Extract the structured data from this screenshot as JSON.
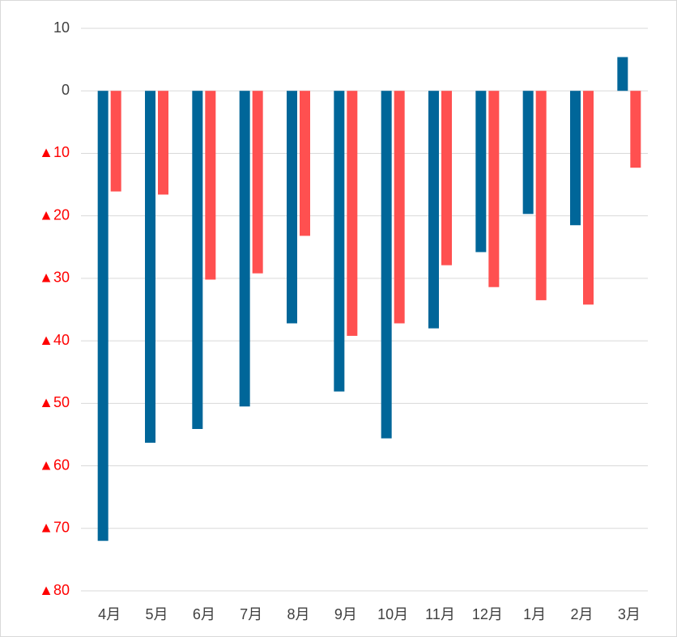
{
  "chart_data": {
    "type": "bar",
    "categories": [
      "4月",
      "5月",
      "6月",
      "7月",
      "8月",
      "9月",
      "10月",
      "11月",
      "12月",
      "1月",
      "2月",
      "3月"
    ],
    "series": [
      {
        "color": "#006699",
        "values": [
          -72.0,
          -56.3,
          -54.1,
          -50.5,
          -37.2,
          -48.1,
          -55.6,
          -38.0,
          -25.8,
          -19.7,
          -21.5,
          5.4
        ]
      },
      {
        "color": "#ff5050",
        "values": [
          -16.1,
          -16.6,
          -30.2,
          -29.2,
          -23.2,
          -39.2,
          -37.2,
          -27.9,
          -31.4,
          -33.5,
          -34.2,
          -12.3
        ]
      }
    ],
    "ylim": [
      -80,
      10
    ],
    "yticks": [
      {
        "value": -80,
        "label": "▲80"
      },
      {
        "value": -70,
        "label": "▲70"
      },
      {
        "value": -60,
        "label": "▲60"
      },
      {
        "value": -50,
        "label": "▲50"
      },
      {
        "value": -40,
        "label": "▲40"
      },
      {
        "value": -30,
        "label": "▲30"
      },
      {
        "value": -20,
        "label": "▲20"
      },
      {
        "value": -10,
        "label": "▲10"
      },
      0,
      10
    ],
    "grid": true,
    "tick_label_color": "#404040",
    "negative_tick_label_color": "#ff0000"
  }
}
